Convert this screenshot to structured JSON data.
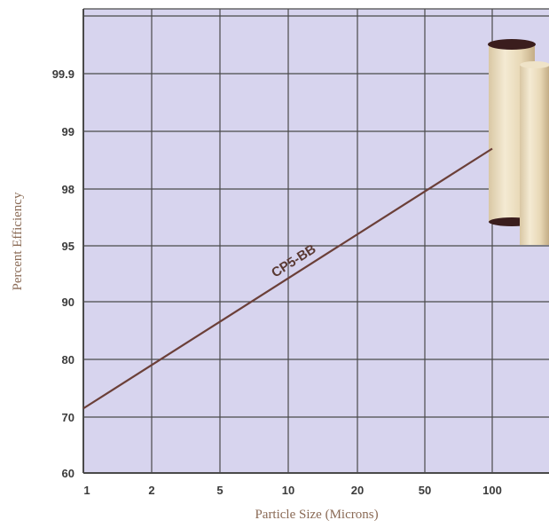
{
  "chart_data": {
    "type": "line",
    "title": "",
    "xlabel": "Particle Size (Microns)",
    "ylabel": "Percent Efficiency",
    "x_scale": "log",
    "y_scale": "probability",
    "x_tick_labels": [
      "1",
      "2",
      "5",
      "10",
      "20",
      "50",
      "100"
    ],
    "y_tick_labels": [
      "60",
      "70",
      "80",
      "90",
      "95",
      "98",
      "99",
      "99.9"
    ],
    "grid": true,
    "series": [
      {
        "name": "CP5-BB",
        "x": [
          1,
          100
        ],
        "y": [
          71.5,
          98.7
        ]
      }
    ],
    "colors": {
      "plot_background": "#d7d4ee",
      "grid": "#4a4a4a",
      "line": "#6b3f38",
      "axis_title": "#8a6a55"
    },
    "legend": "none",
    "image": "filter-cartridges-icon"
  }
}
